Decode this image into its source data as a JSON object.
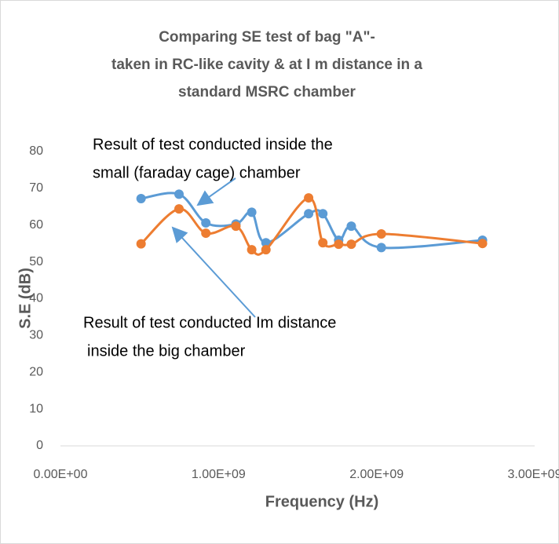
{
  "chart_data": {
    "type": "scatter",
    "title": [
      "Comparing SE test of bag \"A\"-",
      "taken in RC-like cavity & at I m distance in a",
      "standard MSRC chamber"
    ],
    "x_label": "Frequency (Hz)",
    "y_label": "S.E (dB)",
    "annotations": [
      [
        "Result of test conducted inside the",
        "small (faraday cage) chamber"
      ],
      [
        "Result of test conducted Im distance",
        "inside the big chamber"
      ]
    ],
    "xlim": [
      0,
      3000000000
    ],
    "xticks": [
      {
        "value": 0,
        "label": "0.00E+00"
      },
      {
        "value": 1000000000,
        "label": "1.00E+09"
      },
      {
        "value": 2000000000,
        "label": "2.00E+09"
      },
      {
        "value": 3000000000,
        "label": "3.00E+09"
      }
    ],
    "ylim": [
      0,
      80
    ],
    "yticks": [
      0,
      10,
      20,
      30,
      40,
      50,
      60,
      70,
      80
    ],
    "grid": false,
    "smooth": true,
    "series": [
      {
        "color": "#5b9bd5",
        "x": [
          510000000,
          750000000,
          920000000,
          1110000000,
          1210000000,
          1300000000,
          1570000000,
          1660000000,
          1760000000,
          1840000000,
          2030000000,
          2670000000
        ],
        "values": [
          67.2,
          68.4,
          60.6,
          60.3,
          63.5,
          55.2,
          63.1,
          63.1,
          55.9,
          59.7,
          53.9,
          55.9
        ]
      },
      {
        "color": "#ed7d31",
        "x": [
          510000000,
          750000000,
          920000000,
          1110000000,
          1210000000,
          1300000000,
          1570000000,
          1660000000,
          1760000000,
          1840000000,
          2030000000,
          2670000000
        ],
        "values": [
          54.9,
          64.4,
          57.8,
          59.7,
          53.3,
          53.3,
          67.4,
          55.2,
          54.8,
          54.8,
          57.6,
          55.0
        ]
      }
    ]
  }
}
